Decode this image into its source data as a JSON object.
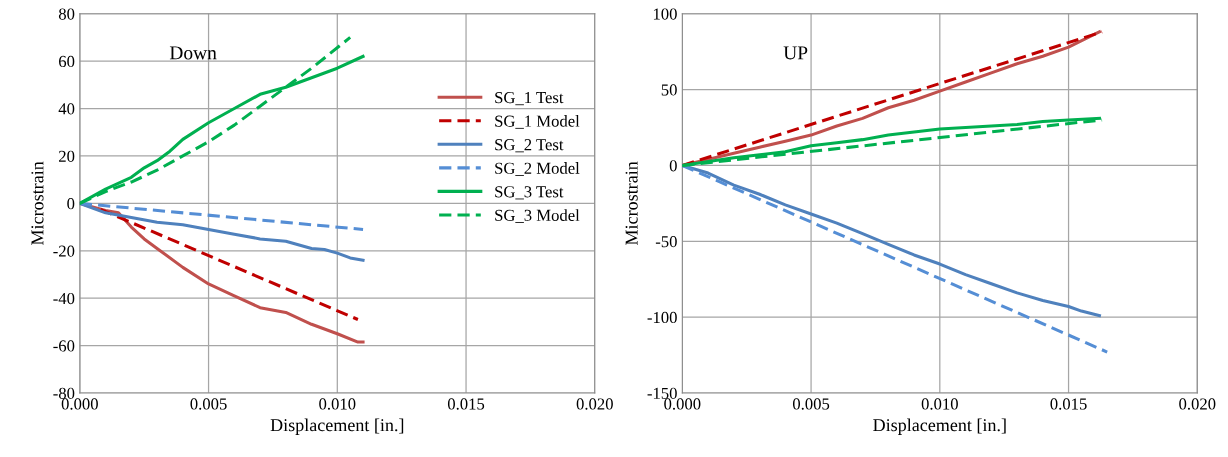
{
  "chart_data": [
    {
      "type": "line",
      "title": "Down",
      "xlabel": "Displacement [in.]",
      "ylabel": "Microstrain",
      "xlim": [
        0,
        0.02
      ],
      "ylim": [
        -80,
        80
      ],
      "xticks": [
        {
          "value": 0,
          "label": "0.000"
        },
        {
          "value": 0.005,
          "label": "0.005"
        },
        {
          "value": 0.01,
          "label": "0.010"
        },
        {
          "value": 0.015,
          "label": "0.015"
        },
        {
          "value": 0.02,
          "label": "0.020"
        }
      ],
      "yticks": [
        -80,
        -60,
        -40,
        -20,
        0,
        20,
        40,
        60,
        80
      ],
      "grid": true,
      "legend": "right",
      "marker": "none",
      "series": [
        {
          "name": "SG_1 Test",
          "color": "#c0504d",
          "line_style": "solid",
          "x": [
            0,
            0.001,
            0.0015,
            0.002,
            0.0025,
            0.003,
            0.004,
            0.005,
            0.006,
            0.007,
            0.008,
            0.009,
            0.01,
            0.0108,
            0.011
          ],
          "values": [
            0,
            -3,
            -4,
            -10,
            -15,
            -19,
            -27,
            -34,
            -39,
            -44,
            -46,
            -51,
            -55,
            -58.5,
            -58.5
          ]
        },
        {
          "name": "SG_1 Model",
          "color": "#c00000",
          "line_style": "dashed",
          "x": [
            0.0008,
            0.0108
          ],
          "values": [
            -2.5,
            -49
          ]
        },
        {
          "name": "SG_2 Test",
          "color": "#4f81bd",
          "line_style": "solid",
          "x": [
            0,
            0.001,
            0.002,
            0.003,
            0.004,
            0.005,
            0.006,
            0.007,
            0.008,
            0.009,
            0.0095,
            0.01,
            0.0105,
            0.011
          ],
          "values": [
            0,
            -4,
            -6,
            -8,
            -9,
            -11,
            -13,
            -15,
            -16,
            -19,
            -19.5,
            -21,
            -23,
            -24
          ]
        },
        {
          "name": "SG_2 Model",
          "color": "#558ed5",
          "line_style": "dashed",
          "x": [
            0,
            0.011
          ],
          "values": [
            0,
            -11
          ]
        },
        {
          "name": "SG_3 Test",
          "color": "#00b050",
          "line_style": "solid",
          "x": [
            0,
            0.001,
            0.002,
            0.0025,
            0.003,
            0.0035,
            0.004,
            0.005,
            0.006,
            0.007,
            0.008,
            0.009,
            0.01,
            0.011
          ],
          "values": [
            0,
            6,
            11,
            15,
            18,
            22,
            27,
            34,
            40,
            46,
            49,
            53,
            57,
            62
          ]
        },
        {
          "name": "SG_3 Model",
          "color": "#00b050",
          "line_style": "dashed",
          "x": [
            0,
            0.001,
            0.002,
            0.003,
            0.004,
            0.005,
            0.006,
            0.007,
            0.008,
            0.009,
            0.0105
          ],
          "values": [
            0,
            5,
            9,
            14,
            20,
            26,
            33,
            41,
            49,
            57,
            70
          ]
        }
      ]
    },
    {
      "type": "line",
      "title": "UP",
      "xlabel": "Displacement [in.]",
      "ylabel": "Microstrain",
      "xlim": [
        0,
        0.02
      ],
      "ylim": [
        -150,
        100
      ],
      "xticks": [
        {
          "value": 0,
          "label": "0.000"
        },
        {
          "value": 0.005,
          "label": "0.005"
        },
        {
          "value": 0.01,
          "label": "0.010"
        },
        {
          "value": 0.015,
          "label": "0.015"
        },
        {
          "value": 0.02,
          "label": "0.020"
        }
      ],
      "yticks": [
        -150,
        -100,
        -50,
        0,
        50,
        100
      ],
      "grid": true,
      "marker": "none",
      "series": [
        {
          "color": "#c0504d",
          "line_style": "solid",
          "x": [
            0,
            0.002,
            0.003,
            0.004,
            0.005,
            0.006,
            0.007,
            0.008,
            0.009,
            0.01,
            0.011,
            0.012,
            0.013,
            0.014,
            0.015,
            0.0162
          ],
          "values": [
            0,
            8,
            12,
            16,
            20,
            26,
            31,
            38,
            43,
            49,
            55,
            61,
            67,
            72,
            78,
            88
          ]
        },
        {
          "color": "#c00000",
          "line_style": "dashed",
          "x": [
            0,
            0.0163
          ],
          "values": [
            0,
            88
          ]
        },
        {
          "color": "#4f81bd",
          "line_style": "solid",
          "x": [
            0,
            0.001,
            0.002,
            0.003,
            0.004,
            0.005,
            0.006,
            0.007,
            0.008,
            0.009,
            0.01,
            0.011,
            0.012,
            0.013,
            0.014,
            0.015,
            0.0155,
            0.0162
          ],
          "values": [
            0,
            -5,
            -13,
            -19,
            -26,
            -32,
            -38,
            -45,
            -52,
            -59,
            -65,
            -72,
            -78,
            -84,
            -89,
            -93,
            -96,
            -99
          ]
        },
        {
          "color": "#558ed5",
          "line_style": "dashed",
          "x": [
            0,
            0.0165
          ],
          "values": [
            0,
            -123
          ]
        },
        {
          "color": "#00b050",
          "line_style": "solid",
          "x": [
            0,
            0.002,
            0.004,
            0.005,
            0.006,
            0.007,
            0.008,
            0.009,
            0.01,
            0.011,
            0.012,
            0.013,
            0.014,
            0.015,
            0.0162
          ],
          "values": [
            0,
            5,
            9,
            13,
            15,
            17,
            20,
            22,
            24,
            25,
            26,
            27,
            29,
            30,
            31
          ]
        },
        {
          "color": "#00b050",
          "line_style": "dashed",
          "x": [
            0,
            0.0163
          ],
          "values": [
            0,
            30
          ]
        }
      ]
    }
  ]
}
